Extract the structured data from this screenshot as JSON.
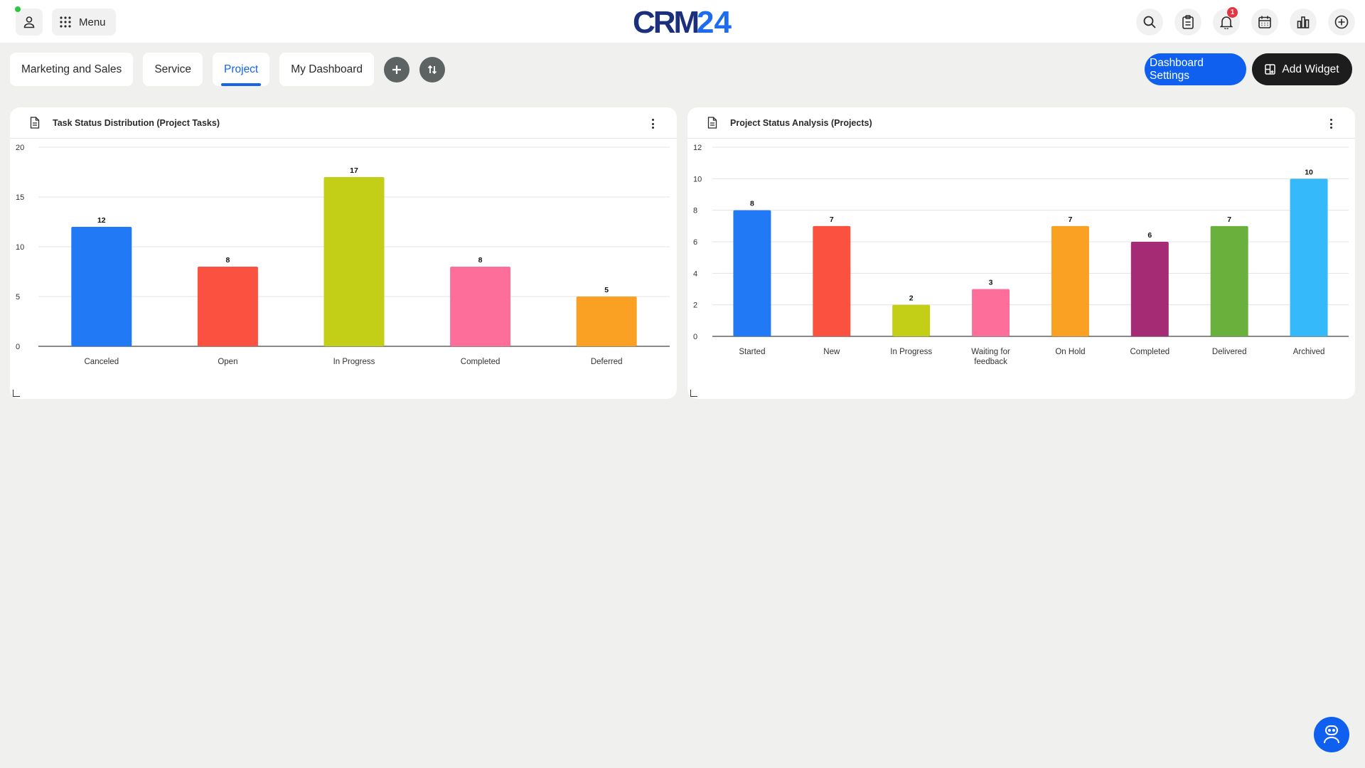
{
  "header": {
    "menu_label": "Menu",
    "logo_text": "CRM24",
    "notifications_count": "1",
    "icons": [
      "user-icon",
      "grid-icon",
      "search-icon",
      "clipboard-icon",
      "bell-icon",
      "calendar-icon",
      "chart-icon",
      "plus-circle-icon"
    ]
  },
  "tabs": [
    {
      "label": "Marketing and Sales",
      "active": false
    },
    {
      "label": "Service",
      "active": false
    },
    {
      "label": "Project",
      "active": true
    },
    {
      "label": "My Dashboard",
      "active": false
    }
  ],
  "actions": {
    "dashboard_settings": "Dashboard Settings",
    "add_widget": "Add Widget"
  },
  "colors": {
    "accent": "#1060f0",
    "active_tab": "#1565e6"
  },
  "widgets": [
    {
      "title": "Task Status Distribution (Project Tasks)"
    },
    {
      "title": "Project Status Analysis (Projects)"
    }
  ],
  "chart_data": [
    {
      "type": "bar",
      "title": "Task Status Distribution (Project Tasks)",
      "categories": [
        "Canceled",
        "Open",
        "In Progress",
        "Completed",
        "Deferred"
      ],
      "values": [
        12,
        8,
        17,
        8,
        5
      ],
      "colors": [
        "#2279f6",
        "#fb5141",
        "#c3ce17",
        "#fe6e9a",
        "#faa123"
      ],
      "ylim": [
        0,
        20
      ],
      "yticks": [
        0,
        5,
        10,
        15,
        20
      ],
      "grid": true,
      "data_labels": true
    },
    {
      "type": "bar",
      "title": "Project Status Analysis (Projects)",
      "categories": [
        "Started",
        "New",
        "In Progress",
        "Waiting for feedback",
        "On Hold",
        "Completed",
        "Delivered",
        "Archived"
      ],
      "category_lines": [
        [
          "Started"
        ],
        [
          "New"
        ],
        [
          "In Progress"
        ],
        [
          "Waiting for",
          "feedback"
        ],
        [
          "On Hold"
        ],
        [
          "Completed"
        ],
        [
          "Delivered"
        ],
        [
          "Archived"
        ]
      ],
      "values": [
        8,
        7,
        2,
        3,
        7,
        6,
        7,
        10
      ],
      "colors": [
        "#2279f6",
        "#fb5141",
        "#c3ce17",
        "#fe6e9a",
        "#faa123",
        "#a52b74",
        "#6ab03c",
        "#35b9fb"
      ],
      "ylim": [
        0,
        12
      ],
      "yticks": [
        0,
        2,
        4,
        6,
        8,
        10,
        12
      ],
      "grid": true,
      "data_labels": true
    }
  ]
}
